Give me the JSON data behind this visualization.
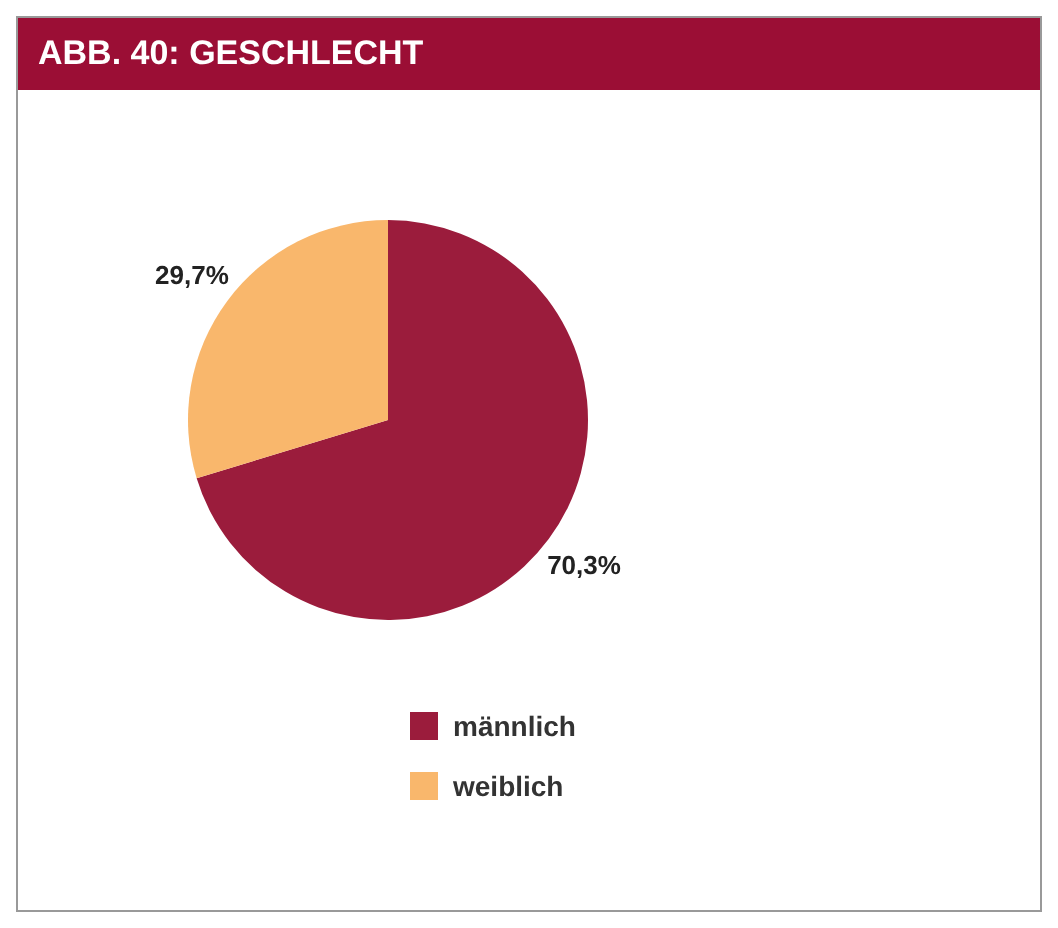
{
  "chart_data": {
    "type": "pie",
    "title": "ABB. 40: GESCHLECHT",
    "categories": [
      "männlich",
      "weiblich"
    ],
    "values": [
      70.3,
      29.7
    ],
    "colors": [
      "#9b1c3c",
      "#f9b76c"
    ],
    "value_labels": [
      "70,3%",
      "29,7%"
    ],
    "legend": "bottom"
  }
}
